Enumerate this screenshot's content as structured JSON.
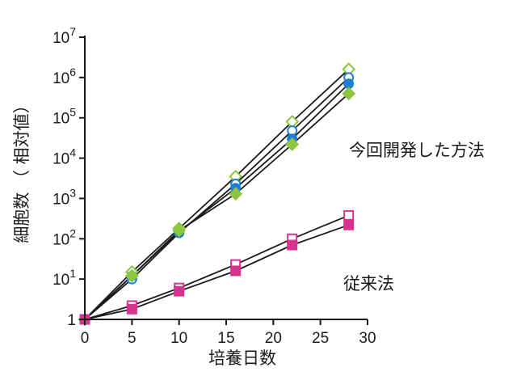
{
  "chart_data": {
    "type": "line",
    "xlabel": "培養日数",
    "ylabel": "細胞数 （ 相対値）",
    "xlim": [
      0,
      30
    ],
    "xticks": [
      0,
      5,
      10,
      15,
      20,
      25,
      30
    ],
    "ylim": [
      1,
      10000000
    ],
    "yscale": "log",
    "yticks": [
      {
        "value": 1,
        "base": "1",
        "exp": ""
      },
      {
        "value": 10,
        "base": "10",
        "exp": "1"
      },
      {
        "value": 100,
        "base": "10",
        "exp": "2"
      },
      {
        "value": 1000,
        "base": "10",
        "exp": "3"
      },
      {
        "value": 10000,
        "base": "10",
        "exp": "4"
      },
      {
        "value": 100000,
        "base": "10",
        "exp": "5"
      },
      {
        "value": 1000000,
        "base": "10",
        "exp": "6"
      },
      {
        "value": 10000000,
        "base": "10",
        "exp": "7"
      }
    ],
    "annotations": [
      {
        "text": "今回開発した方法",
        "group": "new"
      },
      {
        "text": "従来法",
        "group": "conventional"
      }
    ],
    "series": [
      {
        "group": "new",
        "marker": "diamond",
        "filled": false,
        "color": "#8cc63e",
        "points": [
          [
            0,
            1
          ],
          [
            5,
            15
          ],
          [
            10,
            180
          ],
          [
            16,
            3500
          ],
          [
            22,
            80000
          ],
          [
            28,
            1600000
          ]
        ]
      },
      {
        "group": "new",
        "marker": "circle",
        "filled": false,
        "color": "#1f7fd0",
        "points": [
          [
            0,
            1
          ],
          [
            5,
            10
          ],
          [
            10,
            140
          ],
          [
            16,
            2300
          ],
          [
            22,
            48000
          ],
          [
            28,
            1000000
          ]
        ]
      },
      {
        "group": "new",
        "marker": "circle",
        "filled": true,
        "color": "#1f7fd0",
        "points": [
          [
            0,
            1
          ],
          [
            5,
            12
          ],
          [
            10,
            150
          ],
          [
            16,
            1800
          ],
          [
            22,
            30000
          ],
          [
            28,
            700000
          ]
        ]
      },
      {
        "group": "new",
        "marker": "diamond",
        "filled": true,
        "color": "#8cc63e",
        "points": [
          [
            0,
            1
          ],
          [
            5,
            12
          ],
          [
            10,
            160
          ],
          [
            16,
            1300
          ],
          [
            22,
            22000
          ],
          [
            28,
            400000
          ]
        ]
      },
      {
        "group": "conventional",
        "marker": "square",
        "filled": false,
        "color": "#d6338e",
        "points": [
          [
            0,
            1
          ],
          [
            5,
            2.2
          ],
          [
            10,
            6
          ],
          [
            16,
            23
          ],
          [
            22,
            100
          ],
          [
            28,
            380
          ]
        ]
      },
      {
        "group": "conventional",
        "marker": "square",
        "filled": true,
        "color": "#d6338e",
        "points": [
          [
            0,
            1
          ],
          [
            5,
            1.8
          ],
          [
            10,
            5
          ],
          [
            16,
            16
          ],
          [
            22,
            70
          ],
          [
            28,
            220
          ]
        ]
      }
    ]
  }
}
